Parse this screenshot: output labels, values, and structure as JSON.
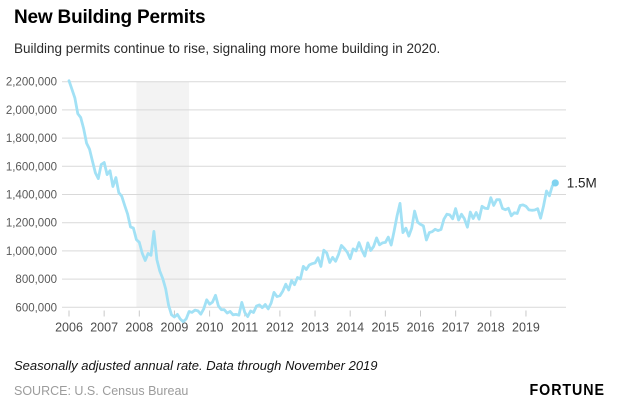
{
  "header": {
    "title": "New Building Permits",
    "subtitle": "Building permits continue to rise, signaling more home building in 2020."
  },
  "footer": {
    "note": "Seasonally adjusted annual rate. Data through November 2019",
    "source": "SOURCE: U.S. Census Bureau",
    "brand": "FORTUNE"
  },
  "colors": {
    "line": "#a2e1f5",
    "end_dot": "#7fd3f0",
    "grid": "#d9d9d9",
    "tick": "#c9c9c9",
    "recession_band": "#f3f3f3",
    "y_label": "#595959",
    "x_label": "#4d4d4d",
    "end_label": "#222222",
    "background": "#ffffff"
  },
  "chart_data": {
    "type": "line",
    "title": "New Building Permits",
    "subtitle": "Building permits continue to rise, signaling more home building in 2020.",
    "xlabel": "",
    "ylabel": "",
    "unit": "building permits, seasonally adjusted annual rate",
    "grid": true,
    "legend": "none",
    "x_start": "2006-01",
    "x_end": "2019-11",
    "x_tick_labels": [
      "2006",
      "2007",
      "2008",
      "2009",
      "2010",
      "2011",
      "2012",
      "2013",
      "2014",
      "2015",
      "2016",
      "2017",
      "2018",
      "2019"
    ],
    "ylim": [
      600000,
      2200000
    ],
    "y_ticks": [
      600000,
      800000,
      1000000,
      1200000,
      1400000,
      1600000,
      1800000,
      2000000,
      2200000
    ],
    "y_tick_labels": [
      "600,000",
      "800,000",
      "1,000,000",
      "1,200,000",
      "1,400,000",
      "1,600,000",
      "1,800,000",
      "2,000,000",
      "2,200,000"
    ],
    "recession_band": {
      "from": "2007-12",
      "to": "2009-06"
    },
    "end_point_label": "1.5M",
    "series": [
      {
        "name": "New building permits",
        "start": "2006-01",
        "frequency": "monthly",
        "values": [
          2207000,
          2147000,
          2084000,
          1973000,
          1946000,
          1869000,
          1763000,
          1722000,
          1638000,
          1553000,
          1513000,
          1613000,
          1627000,
          1541000,
          1569000,
          1457000,
          1520000,
          1413000,
          1389000,
          1322000,
          1261000,
          1170000,
          1162000,
          1080000,
          1061000,
          984000,
          932000,
          982000,
          969000,
          1138000,
          937000,
          857000,
          805000,
          730000,
          615000,
          547000,
          531000,
          550000,
          516000,
          498000,
          518000,
          570000,
          564000,
          580000,
          575000,
          551000,
          589000,
          653000,
          622000,
          637000,
          685000,
          610000,
          583000,
          583000,
          559000,
          571000,
          547000,
          550000,
          544000,
          635000,
          563000,
          534000,
          574000,
          563000,
          609000,
          617000,
          597000,
          620000,
          589000,
          630000,
          706000,
          676000,
          682000,
          715000,
          764000,
          723000,
          790000,
          760000,
          811000,
          801000,
          890000,
          868000,
          900000,
          909000,
          915000,
          952000,
          890000,
          1005000,
          985000,
          918000,
          954000,
          926000,
          974000,
          1039000,
          1017000,
          991000,
          945000,
          1014000,
          1000000,
          1059000,
          1005000,
          963000,
          1057000,
          1003000,
          1031000,
          1092000,
          1043000,
          1057000,
          1060000,
          1098000,
          1042000,
          1140000,
          1250000,
          1337000,
          1130000,
          1161000,
          1105000,
          1161000,
          1282000,
          1204000,
          1188000,
          1177000,
          1077000,
          1130000,
          1136000,
          1153000,
          1144000,
          1152000,
          1225000,
          1260000,
          1255000,
          1228000,
          1300000,
          1219000,
          1260000,
          1228000,
          1168000,
          1275000,
          1230000,
          1272000,
          1225000,
          1316000,
          1303000,
          1300000,
          1377000,
          1323000,
          1364000,
          1364000,
          1301000,
          1292000,
          1303000,
          1249000,
          1270000,
          1265000,
          1322000,
          1326000,
          1316000,
          1291000,
          1288000,
          1290000,
          1299000,
          1232000,
          1317000,
          1425000,
          1391000,
          1461000,
          1482000
        ]
      }
    ]
  }
}
